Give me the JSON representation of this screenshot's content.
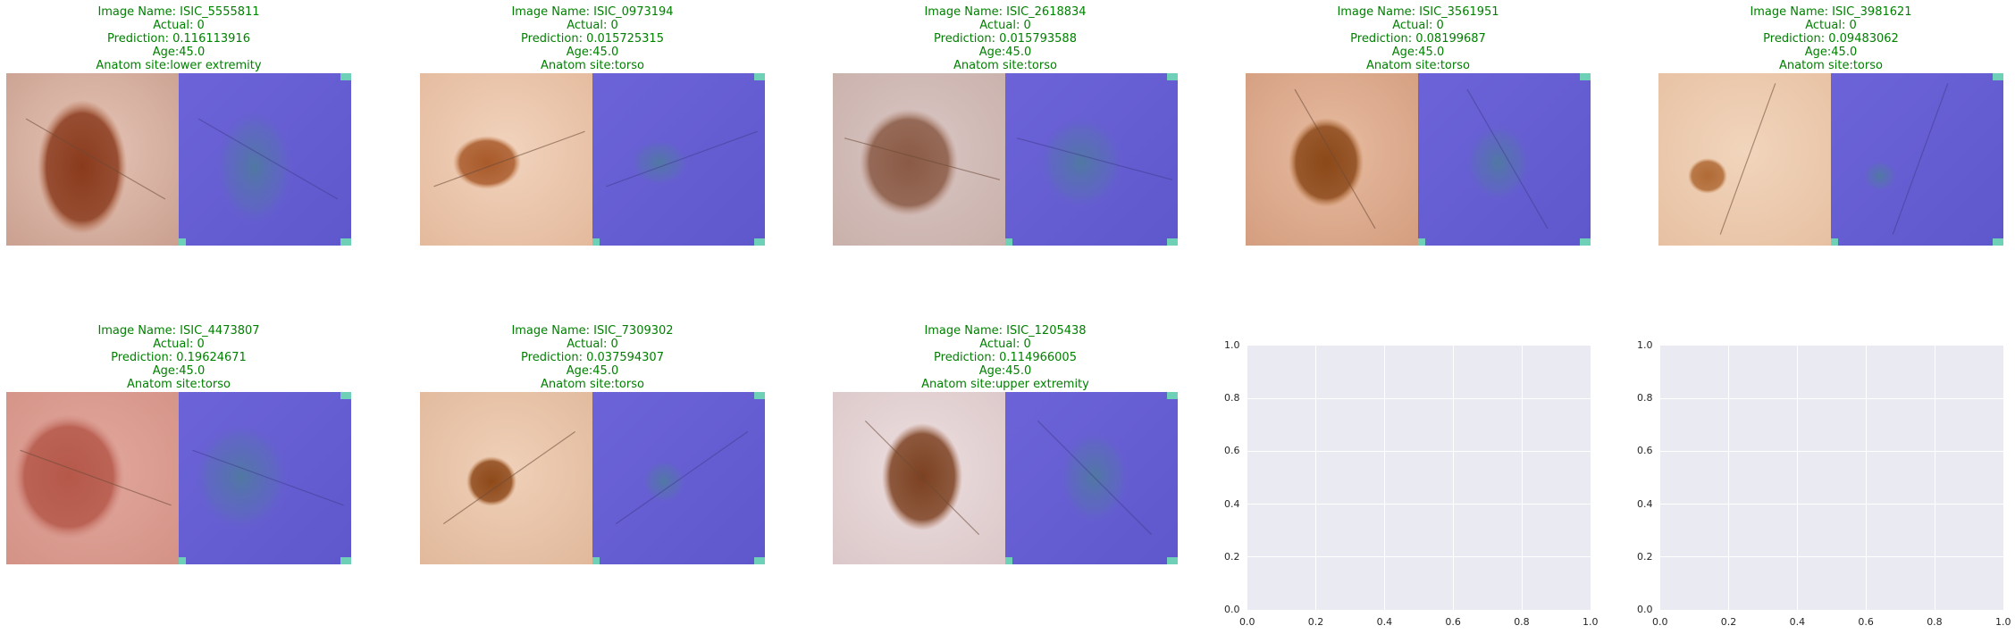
{
  "panels": [
    {
      "image_name": "Image Name: ISIC_5555811",
      "actual": "Actual: 0",
      "prediction": "Prediction: 0.116113916",
      "age": "Age:45.0",
      "site": "Anatom site:lower extremity"
    },
    {
      "image_name": "Image Name: ISIC_0973194",
      "actual": "Actual: 0",
      "prediction": "Prediction: 0.015725315",
      "age": "Age:45.0",
      "site": "Anatom site:torso"
    },
    {
      "image_name": "Image Name: ISIC_2618834",
      "actual": "Actual: 0",
      "prediction": "Prediction: 0.015793588",
      "age": "Age:45.0",
      "site": "Anatom site:torso"
    },
    {
      "image_name": "Image Name: ISIC_3561951",
      "actual": "Actual: 0",
      "prediction": "Prediction: 0.08199687",
      "age": "Age:45.0",
      "site": "Anatom site:torso"
    },
    {
      "image_name": "Image Name: ISIC_3981621",
      "actual": "Actual: 0",
      "prediction": "Prediction: 0.09483062",
      "age": "Age:45.0",
      "site": "Anatom site:torso"
    },
    {
      "image_name": "Image Name: ISIC_4473807",
      "actual": "Actual: 0",
      "prediction": "Prediction: 0.19624671",
      "age": "Age:45.0",
      "site": "Anatom site:torso"
    },
    {
      "image_name": "Image Name: ISIC_7309302",
      "actual": "Actual: 0",
      "prediction": "Prediction: 0.037594307",
      "age": "Age:45.0",
      "site": "Anatom site:torso"
    },
    {
      "image_name": "Image Name: ISIC_1205438",
      "actual": "Actual: 0",
      "prediction": "Prediction: 0.114966005",
      "age": "Age:45.0",
      "site": "Anatom site:upper extremity"
    }
  ],
  "chart_data": [
    {
      "type": "image-grid",
      "rows": 2,
      "cols": 5,
      "filled_panels": 8,
      "title_color": "#008000",
      "heatmap_color": "#6a5fd6"
    },
    {
      "type": "scatter",
      "empty": true,
      "xlim": [
        0.0,
        1.0
      ],
      "ylim": [
        0.0,
        1.0
      ],
      "xticks": [
        "0.0",
        "0.2",
        "0.4",
        "0.6",
        "0.8",
        "1.0"
      ],
      "yticks": [
        "0.0",
        "0.2",
        "0.4",
        "0.6",
        "0.8",
        "1.0"
      ],
      "grid": true
    },
    {
      "type": "scatter",
      "empty": true,
      "xlim": [
        0.0,
        1.0
      ],
      "ylim": [
        0.0,
        1.0
      ],
      "xticks": [
        "0.0",
        "0.2",
        "0.4",
        "0.6",
        "0.8",
        "1.0"
      ],
      "yticks": [
        "0.0",
        "0.2",
        "0.4",
        "0.6",
        "0.8",
        "1.0"
      ],
      "grid": true
    }
  ]
}
